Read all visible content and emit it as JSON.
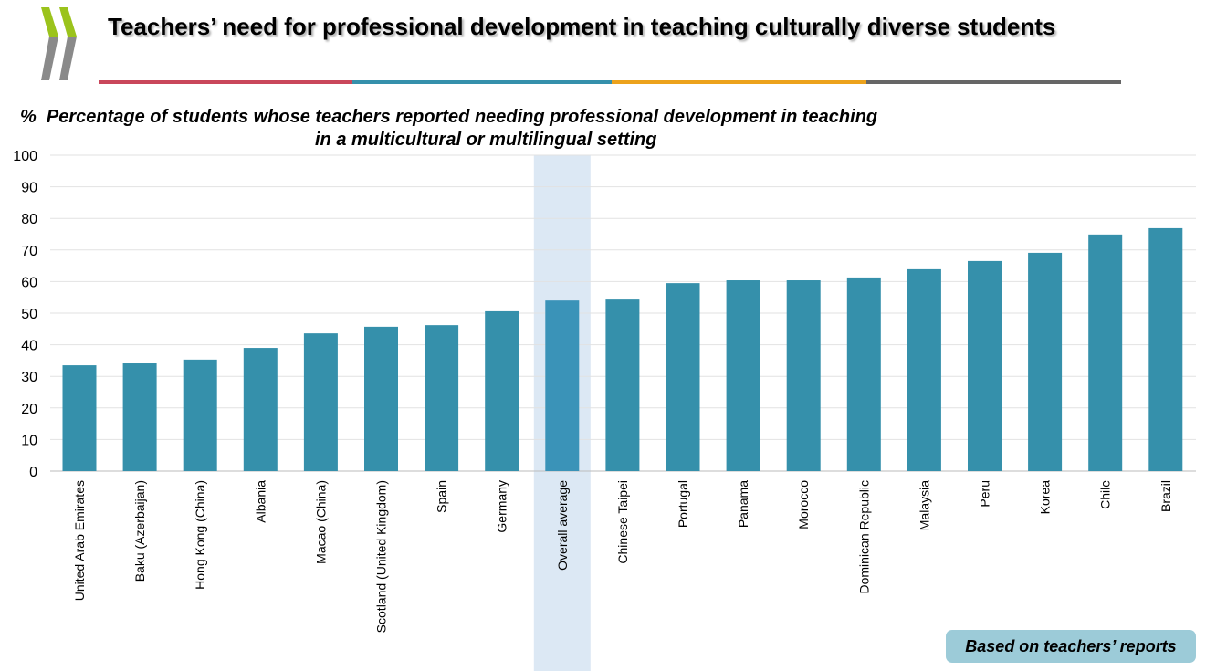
{
  "header": {
    "title": "Teachers’ need for professional development in teaching culturally diverse students",
    "rule_colors": [
      "#c9475b",
      "#3590ab",
      "#eca21c",
      "#666666"
    ],
    "logo": "OECD"
  },
  "footer": {
    "badge": "Based on teachers’ reports"
  },
  "colors": {
    "bar": "#3590ab",
    "highlight_bar": "#3a93b8",
    "highlight_band": "#dce8f4",
    "grid": "#e2e2e2"
  },
  "chart_data": {
    "type": "bar",
    "title": "Percentage of students whose teachers reported needing professional development in teaching in a multicultural or multilingual setting",
    "title_line1": "Percentage of students whose teachers reported needing professional development in teaching",
    "title_line2": "in a multicultural or multilingual setting",
    "ylabel": "%",
    "ylim": [
      0,
      100
    ],
    "yticks": [
      0,
      10,
      20,
      30,
      40,
      50,
      60,
      70,
      80,
      90,
      100
    ],
    "grid": true,
    "highlight": "Overall average",
    "categories": [
      "United Arab Emirates",
      "Baku (Azerbaijan)",
      "Hong Kong (China)",
      "Albania",
      "Macao (China)",
      "Scotland (United Kingdom)",
      "Spain",
      "Germany",
      "Overall average",
      "Chinese Taipei",
      "Portugal",
      "Panama",
      "Morocco",
      "Dominican Republic",
      "Malaysia",
      "Peru",
      "Korea",
      "Chile",
      "Brazil"
    ],
    "values": [
      33.5,
      34.1,
      35.3,
      39.0,
      43.6,
      45.7,
      46.2,
      50.6,
      54.0,
      54.3,
      59.5,
      60.4,
      60.4,
      61.3,
      63.9,
      66.5,
      69.1,
      74.9,
      76.9
    ]
  }
}
